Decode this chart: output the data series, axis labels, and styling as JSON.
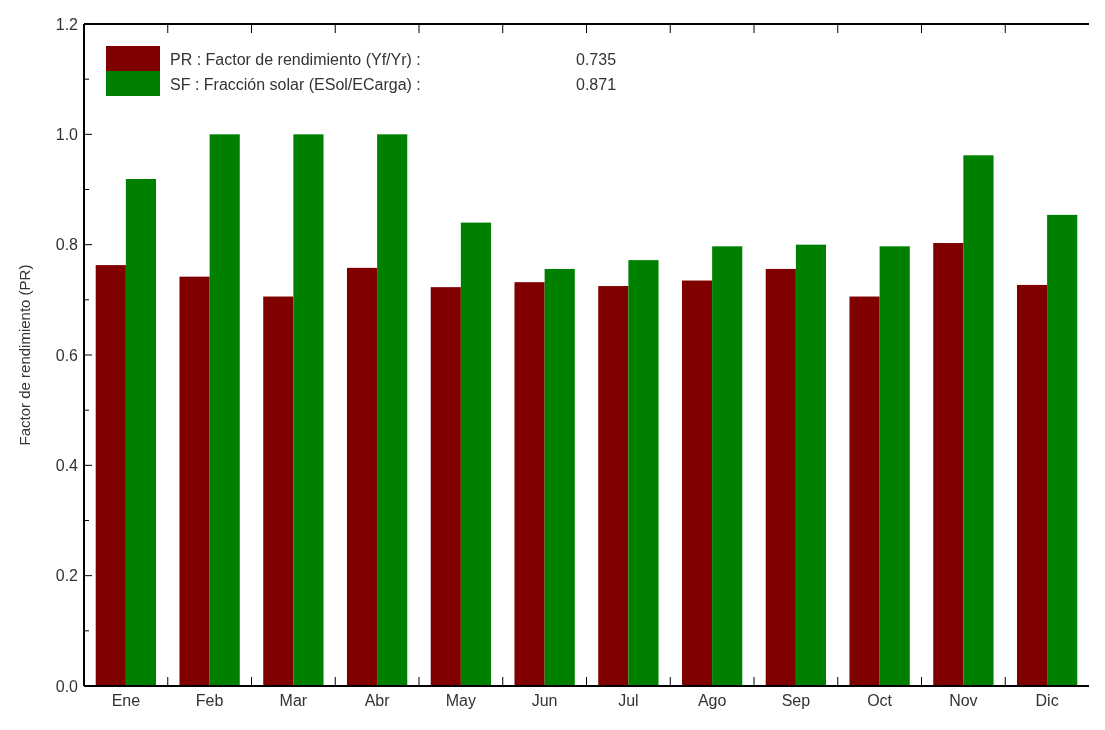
{
  "chart_data": {
    "type": "bar",
    "ylabel": "Factor de rendimiento (PR)",
    "categories": [
      "Ene",
      "Feb",
      "Mar",
      "Abr",
      "May",
      "Jun",
      "Jul",
      "Ago",
      "Sep",
      "Oct",
      "Nov",
      "Dic"
    ],
    "series": [
      {
        "name": "PR : Factor de rendimiento (Yf/Yr) :",
        "color": "#800000",
        "values": [
          0.763,
          0.742,
          0.706,
          0.758,
          0.723,
          0.732,
          0.725,
          0.735,
          0.756,
          0.706,
          0.803,
          0.727
        ]
      },
      {
        "name": "SF : Fracción solar (ESol/ECarga) :",
        "color": "#008000",
        "values": [
          0.919,
          1.0,
          1.0,
          1.0,
          0.84,
          0.756,
          0.772,
          0.797,
          0.8,
          0.797,
          0.962,
          0.854
        ]
      }
    ],
    "annotations": [
      "0.735",
      "0.871"
    ],
    "ylim": [
      0,
      1.2
    ],
    "yticks": [
      {
        "value": 0,
        "label": "0.0"
      },
      {
        "value": 0.1,
        "label": null
      },
      {
        "value": 0.2,
        "label": "0.2"
      },
      {
        "value": 0.3,
        "label": null
      },
      {
        "value": 0.4,
        "label": "0.4"
      },
      {
        "value": 0.5,
        "label": null
      },
      {
        "value": 0.6,
        "label": "0.6"
      },
      {
        "value": 0.7,
        "label": null
      },
      {
        "value": 0.8,
        "label": "0.8"
      },
      {
        "value": 0.9,
        "label": null
      },
      {
        "value": 1.0,
        "label": "1.0"
      },
      {
        "value": 1.1,
        "label": null
      },
      {
        "value": 1.2,
        "label": "1.2"
      }
    ],
    "legend": "top left",
    "grid": false
  }
}
